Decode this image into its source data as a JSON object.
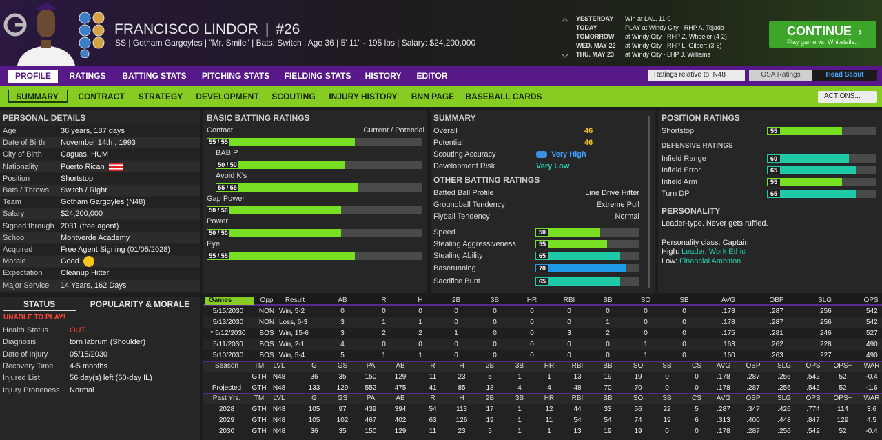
{
  "header": {
    "name": "FRANCISCO LINDOR",
    "separator": "|",
    "number": "#26",
    "subline": "SS | Gotham Gargoyles | \"Mr. Smile\" | Bats: Switch | Age 36 | 5' 11\" - 195 lbs | Salary: $24,200,000"
  },
  "schedule": [
    {
      "day": "YESTERDAY",
      "game": "Win at LAL, 11-0"
    },
    {
      "day": "TODAY",
      "game": "PLAY at Windy City - RHP A. Tejada"
    },
    {
      "day": "TOMORROW",
      "game": "at Windy City - RHP Z. Wheeler (4-2)"
    },
    {
      "day": "WED. MAY 22",
      "game": "at Windy City - RHP L. Gilbert (3-5)"
    },
    {
      "day": "THU. MAY 23",
      "game": "at Windy City - LHP J. Williams"
    }
  ],
  "continue_button": {
    "label": "CONTINUE",
    "sub": "Play game vs. Whitetails..."
  },
  "main_tabs": [
    "PROFILE",
    "RATINGS",
    "BATTING STATS",
    "PITCHING STATS",
    "FIELDING STATS",
    "HISTORY",
    "EDITOR"
  ],
  "ratings_select": "Ratings relative to: N48",
  "osa_ratings": "OSA Ratings",
  "head_scout": "Head Scout",
  "sub_tabs": [
    "SUMMARY",
    "CONTRACT",
    "STRATEGY",
    "DEVELOPMENT",
    "SCOUTING",
    "INJURY HISTORY",
    "BNN PAGE",
    "BASEBALL CARDS"
  ],
  "actions": "ACTIONS...",
  "rating_scale": [
    0,
    80
  ],
  "personal_details": {
    "title": "PERSONAL DETAILS",
    "rows": [
      [
        "Age",
        "36 years, 187 days"
      ],
      [
        "Date of Birth",
        "November 14th , 1993"
      ],
      [
        "City of Birth",
        "Caguas, HUM"
      ],
      [
        "Nationality",
        "Puerto Rican"
      ],
      [
        "Position",
        "Shortstop"
      ],
      [
        "Bats / Throws",
        "Switch / Right"
      ],
      [
        "Team",
        "Gotham Gargoyles (N48)"
      ],
      [
        "Salary",
        "$24,200,000"
      ],
      [
        "Signed through",
        "2031 (free agent)"
      ],
      [
        "School",
        "Montverde Academy"
      ],
      [
        "Acquired",
        "Free Agent Signing (01/05/2028)"
      ],
      [
        "Morale",
        "Good"
      ],
      [
        "Expectation",
        "Cleanup Hitter"
      ],
      [
        "Major Service",
        "14 Years, 162 Days"
      ]
    ]
  },
  "basic_batting": {
    "title": "BASIC BATTING RATINGS",
    "column_note": "Current / Potential",
    "ratings": [
      {
        "name": "Contact",
        "label": "55 / 55",
        "current": 55,
        "potential": 55,
        "components": [
          {
            "name": "BABIP",
            "label": "50 / 50",
            "current": 50,
            "potential": 50
          },
          {
            "name": "Avoid K's",
            "label": "55 / 55",
            "current": 55,
            "potential": 55
          }
        ]
      },
      {
        "name": "Gap Power",
        "label": "50 / 50",
        "current": 50,
        "potential": 50
      },
      {
        "name": "Power",
        "label": "50 / 50",
        "current": 50,
        "potential": 50
      },
      {
        "name": "Eye",
        "label": "55 / 55",
        "current": 55,
        "potential": 55
      }
    ]
  },
  "summary": {
    "title": "SUMMARY",
    "overall": {
      "label": "Overall",
      "value": 46
    },
    "potential": {
      "label": "Potential",
      "value": 46
    },
    "scouting_accuracy": {
      "label": "Scouting Accuracy",
      "value": "Very High"
    },
    "development_risk": {
      "label": "Development Risk",
      "value": "Very Low"
    },
    "other_title": "OTHER BATTING RATINGS",
    "profile_rows": [
      [
        "Batted Ball Profile",
        "Line Drive Hitter"
      ],
      [
        "Groundball Tendency",
        "Extreme Pull"
      ],
      [
        "Flyball Tendency",
        "Normal"
      ]
    ],
    "rating_rows": [
      {
        "label": "Speed",
        "value": 50,
        "color": "#79df22"
      },
      {
        "label": "Stealing Aggressiveness",
        "value": 55,
        "color": "#79df22"
      },
      {
        "label": "Stealing Ability",
        "value": 65,
        "color": "#1fcaa6"
      },
      {
        "label": "Baserunning",
        "value": 70,
        "color": "#1f9ae6"
      },
      {
        "label": "Sacrifice Bunt",
        "value": 65,
        "color": "#1fcaa6"
      }
    ]
  },
  "position": {
    "title": "POSITION RATINGS",
    "rows": [
      {
        "label": "Shortstop",
        "value": 55,
        "color": "#79df22"
      }
    ],
    "defensive_title": "DEFENSIVE RATINGS",
    "defensive_rows": [
      {
        "label": "Infield Range",
        "value": 60,
        "color": "#1fcaa6"
      },
      {
        "label": "Infield Error",
        "value": 65,
        "color": "#1fcaa6"
      },
      {
        "label": "Infield Arm",
        "value": 55,
        "color": "#79df22"
      },
      {
        "label": "Turn DP",
        "value": 65,
        "color": "#1fcaa6"
      }
    ],
    "personality_title": "PERSONALITY",
    "personality_text": "Leader-type. Never gets ruffled.",
    "class_text": "Personality class: Captain",
    "high_label": "High:",
    "high_value": "Leader, Work Ethic",
    "low_label": "Low:",
    "low_value": "Financial Ambition"
  },
  "status": {
    "tabs": [
      "STATUS",
      "POPULARITY & MORALE"
    ],
    "alert": "UNABLE TO PLAY!",
    "rows": [
      [
        "Health Status",
        "OUT"
      ],
      [
        "Diagnosis",
        "torn labrum (Shoulder)"
      ],
      [
        "Date of Injury",
        "05/15/2030"
      ],
      [
        "Recovery Time",
        "4-5 months"
      ],
      [
        "Injured List",
        "56 day(s) left (60-day IL)"
      ],
      [
        "Injury Proneness",
        "Normal"
      ]
    ]
  },
  "game_log": {
    "columns": [
      "Games",
      "Opp",
      "Result",
      "AB",
      "R",
      "H",
      "2B",
      "3B",
      "HR",
      "RBI",
      "BB",
      "SO",
      "SB",
      "AVG",
      "OBP",
      "SLG",
      "OPS"
    ],
    "rows": [
      [
        "5/15/2030",
        "NON",
        "Win, 5-2",
        "0",
        "0",
        "0",
        "0",
        "0",
        "0",
        "0",
        "0",
        "0",
        "0",
        ".178",
        ".287",
        ".256",
        ".542"
      ],
      [
        "5/13/2030",
        "NON",
        "Loss, 6-3",
        "3",
        "1",
        "1",
        "0",
        "0",
        "0",
        "0",
        "1",
        "0",
        "0",
        ".178",
        ".287",
        ".256",
        ".542"
      ],
      [
        "* 5/12/2030",
        "BOS",
        "Win, 15-6",
        "3",
        "2",
        "2",
        "1",
        "0",
        "0",
        "3",
        "2",
        "0",
        "0",
        ".175",
        ".281",
        ".246",
        ".527"
      ],
      [
        "5/11/2030",
        "BOS",
        "Win, 2-1",
        "4",
        "0",
        "0",
        "0",
        "0",
        "0",
        "0",
        "0",
        "1",
        "0",
        ".163",
        ".262",
        ".228",
        ".490"
      ],
      [
        "5/10/2030",
        "BOS",
        "Win, 5-4",
        "5",
        "1",
        "1",
        "0",
        "0",
        "0",
        "0",
        "0",
        "1",
        "0",
        ".160",
        ".263",
        ".227",
        ".490"
      ]
    ]
  },
  "season": {
    "columns": [
      "Season",
      "TM",
      "LVL",
      "G",
      "GS",
      "PA",
      "AB",
      "R",
      "H",
      "2B",
      "3B",
      "HR",
      "RBI",
      "BB",
      "SO",
      "SB",
      "CS",
      "AVG",
      "OBP",
      "SLG",
      "OPS",
      "OPS+",
      "WAR"
    ],
    "rows": [
      [
        null,
        "GTH",
        "N48",
        "36",
        "35",
        "150",
        "129",
        "11",
        "23",
        "5",
        "1",
        "1",
        "13",
        "19",
        "19",
        "0",
        "0",
        ".178",
        ".287",
        ".256",
        ".542",
        "52",
        "-0.4"
      ],
      [
        "Projected",
        "GTH",
        "N48",
        "133",
        "129",
        "552",
        "475",
        "41",
        "85",
        "18",
        "4",
        "4",
        "48",
        "70",
        "70",
        "0",
        "0",
        ".178",
        ".287",
        ".256",
        ".542",
        "52",
        "-1.6"
      ]
    ]
  },
  "past": {
    "columns": [
      "Past Yrs.",
      "TM",
      "LVL",
      "G",
      "GS",
      "PA",
      "AB",
      "R",
      "H",
      "2B",
      "3B",
      "HR",
      "RBI",
      "BB",
      "SO",
      "SB",
      "CS",
      "AVG",
      "OBP",
      "SLG",
      "OPS",
      "OPS+",
      "WAR"
    ],
    "rows": [
      [
        "2028",
        "GTH",
        "N48",
        "105",
        "97",
        "439",
        "394",
        "54",
        "113",
        "17",
        "1",
        "12",
        "44",
        "33",
        "56",
        "22",
        "5",
        ".287",
        ".347",
        ".426",
        ".774",
        "114",
        "3.6"
      ],
      [
        "2029",
        "GTH",
        "N48",
        "105",
        "102",
        "467",
        "402",
        "63",
        "126",
        "19",
        "1",
        "11",
        "54",
        "54",
        "74",
        "19",
        "6",
        ".313",
        ".400",
        ".448",
        ".847",
        "129",
        "4.5"
      ],
      [
        "2030",
        "GTH",
        "N48",
        "36",
        "35",
        "150",
        "129",
        "11",
        "23",
        "5",
        "1",
        "1",
        "13",
        "19",
        "19",
        "0",
        "0",
        ".178",
        ".287",
        ".256",
        ".542",
        "52",
        "-0.4"
      ]
    ]
  }
}
